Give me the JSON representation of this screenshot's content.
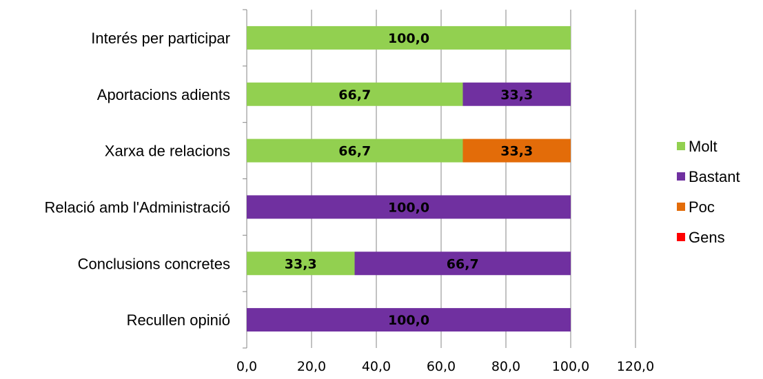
{
  "chart_data": {
    "type": "bar",
    "orientation": "horizontal",
    "stacked": true,
    "title": "",
    "xlabel": "",
    "ylabel": "",
    "categories": [
      "Interés per participar",
      "Aportacions adients",
      "Xarxa de relacions",
      "Relació amb l'Administració",
      "Conclusions concretes",
      "Recullen opinió"
    ],
    "series": [
      {
        "name": "Molt",
        "color": "#92d050",
        "values": [
          100.0,
          66.7,
          66.7,
          0,
          33.3,
          0
        ],
        "labels": [
          "100,0",
          "66,7",
          "66,7",
          "",
          "33,3",
          ""
        ]
      },
      {
        "name": "Bastant",
        "color": "#7030a0",
        "values": [
          0,
          33.3,
          0,
          100.0,
          66.7,
          100.0
        ],
        "labels": [
          "",
          "33,3",
          "",
          "100,0",
          "66,7",
          "100,0"
        ]
      },
      {
        "name": "Poc",
        "color": "#e36c09",
        "values": [
          0,
          0,
          33.3,
          0,
          0,
          0
        ],
        "labels": [
          "",
          "",
          "33,3",
          "",
          "",
          ""
        ]
      },
      {
        "name": "Gens",
        "color": "#ff0000",
        "values": [
          0,
          0,
          0,
          0,
          0,
          0
        ],
        "labels": [
          "",
          "",
          "",
          "",
          "",
          ""
        ]
      }
    ],
    "xlim": [
      0,
      120
    ],
    "xticks": [
      "0,0",
      "20,0",
      "40,0",
      "60,0",
      "80,0",
      "100,0",
      "120,0"
    ],
    "grid": true,
    "legend_position": "right"
  }
}
